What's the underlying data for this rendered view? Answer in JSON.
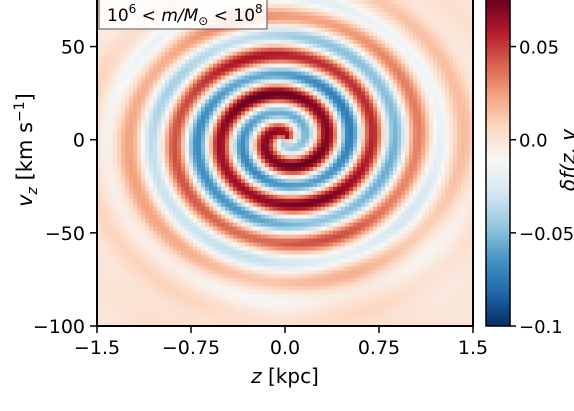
{
  "chart_data": {
    "type": "heatmap",
    "title": "",
    "annotation": {
      "base": "10",
      "exp1": "6",
      "middle": " < m/M",
      "sun": "⊙",
      "lt": " < 10",
      "exp2": "8"
    },
    "x_axis": {
      "label_italic": "z",
      "label_unit": " [kpc]",
      "range": [
        -1.5,
        1.5
      ],
      "ticks": [
        {
          "value": -1.5,
          "label": "−1.5"
        },
        {
          "value": -0.75,
          "label": "−0.75"
        },
        {
          "value": 0,
          "label": "0.0"
        },
        {
          "value": 0.75,
          "label": "0.75"
        },
        {
          "value": 1.5,
          "label": "1.5"
        }
      ]
    },
    "y_axis": {
      "label_italic": "v",
      "label_sub": "z",
      "label_unit": " [km s",
      "label_exp": "−1",
      "label_close": "]",
      "range": [
        -100,
        75
      ],
      "ticks": [
        {
          "value": 50,
          "label": "50"
        },
        {
          "value": 0,
          "label": "0"
        },
        {
          "value": -50,
          "label": "−50"
        },
        {
          "value": -100,
          "label": "−100"
        }
      ]
    },
    "colorbar": {
      "label": "δf(z, v",
      "range": [
        -0.1,
        0.075
      ],
      "ticks": [
        {
          "value": 0.05,
          "label": "0.05"
        },
        {
          "value": 0.0,
          "label": "0.0"
        },
        {
          "value": -0.05,
          "label": "−0.05"
        },
        {
          "value": -0.1,
          "label": "−0.1"
        }
      ],
      "colors": [
        "#053061",
        "#2166ac",
        "#4393c3",
        "#92c5de",
        "#d1e5f0",
        "#f7f7f7",
        "#fddbc7",
        "#f4a582",
        "#d6604d",
        "#b2182b",
        "#67001f"
      ]
    },
    "grid": false
  }
}
